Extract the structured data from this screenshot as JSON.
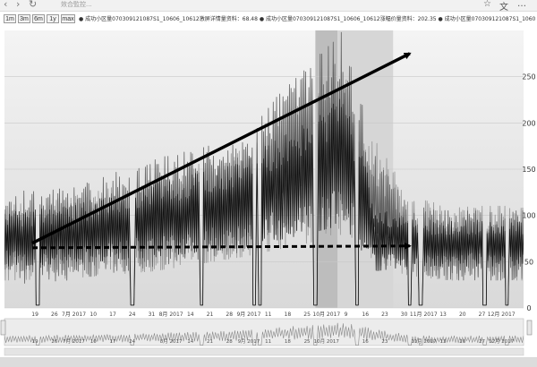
{
  "browser": {
    "address_text": "效合監控...",
    "right_buttons": [
      "☆",
      "文",
      "…"
    ]
  },
  "toolbar": {
    "zoom_buttons": [
      "1m",
      "3m",
      "6m",
      "1y",
      "max"
    ],
    "legend_text": "● 成功小区量070309121087S1_10606_10612激屏详情量资料：68.48 ● 成功小区量070309121087S1_10606_10612涨幅价量资料：202.35 ● 成功小区量070309121087S1_10606_10612事件量不资料 | 08:00 10月 20.2017"
  },
  "colors": {
    "background_gradient_start": "#f4f4f4",
    "background_gradient_end": "#d9d9d9",
    "series_light": "#9b9b9b",
    "series_mid": "#5f5f5f",
    "series_dark": "#111111",
    "trend_arrow": "#000000",
    "navigator_bg": "#ececec"
  },
  "chart_data": {
    "type": "line",
    "x_start": "2017-06-08",
    "x_end": "2017-12-12",
    "ylim": [
      0,
      300
    ],
    "y_ticks": [
      0,
      50,
      100,
      150,
      200,
      250
    ],
    "x_tick_labels": [
      "19",
      "26",
      "7月 2017",
      "10",
      "17",
      "24",
      "31",
      "8月 2017",
      "14",
      "21",
      "28",
      "9月 2017",
      "11",
      "18",
      "25",
      "10月 2017",
      "9",
      "16",
      "23",
      "30",
      "11月 2017",
      "13",
      "20",
      "27",
      "12月 2017"
    ],
    "x_tick_dates": [
      "2017-06-19",
      "2017-06-26",
      "2017-07-03",
      "2017-07-10",
      "2017-07-17",
      "2017-07-24",
      "2017-07-31",
      "2017-08-07",
      "2017-08-14",
      "2017-08-21",
      "2017-08-28",
      "2017-09-04",
      "2017-09-11",
      "2017-09-18",
      "2017-09-25",
      "2017-10-02",
      "2017-10-09",
      "2017-10-16",
      "2017-10-23",
      "2017-10-30",
      "2017-11-06",
      "2017-11-13",
      "2017-11-20",
      "2017-11-27",
      "2017-12-04"
    ],
    "navigator_tick_labels": [
      "19",
      "26",
      "7月 2017",
      "10",
      "17",
      "24",
      "8月 2017",
      "14",
      "21",
      "28",
      "9月 2017",
      "11",
      "18",
      "25",
      "10月 2017",
      "16",
      "23",
      "11月 2017",
      "13",
      "20",
      "27",
      "12月 2017"
    ],
    "navigator_tick_dates": [
      "2017-06-19",
      "2017-06-26",
      "2017-07-03",
      "2017-07-10",
      "2017-07-17",
      "2017-07-24",
      "2017-08-07",
      "2017-08-14",
      "2017-08-21",
      "2017-08-28",
      "2017-09-04",
      "2017-09-11",
      "2017-09-18",
      "2017-09-25",
      "2017-10-02",
      "2017-10-16",
      "2017-10-23",
      "2017-11-06",
      "2017-11-13",
      "2017-11-20",
      "2017-11-27",
      "2017-12-04"
    ],
    "shaded_bands": [
      {
        "from": "2017-09-28",
        "to": "2017-10-06",
        "color": "#bdbdbd"
      },
      {
        "from": "2017-10-06",
        "to": "2017-10-26",
        "color": "#d6d6d6"
      }
    ],
    "series_overview": [
      {
        "name": "激屏详情量",
        "x": [
          "2017-06-08",
          "2017-07-01",
          "2017-08-01",
          "2017-09-01",
          "2017-09-25",
          "2017-10-08",
          "2017-10-20",
          "2017-11-01",
          "2017-11-15",
          "2017-12-12"
        ],
        "low": [
          30,
          32,
          40,
          55,
          70,
          80,
          45,
          35,
          30,
          30
        ],
        "high": [
          110,
          120,
          140,
          170,
          230,
          260,
          180,
          120,
          110,
          110
        ]
      },
      {
        "name": "涨幅价量",
        "x": [
          "2017-06-08",
          "2017-07-01",
          "2017-08-01",
          "2017-09-01",
          "2017-09-25",
          "2017-10-08",
          "2017-10-20",
          "2017-11-01",
          "2017-11-15",
          "2017-12-12"
        ],
        "low": [
          25,
          30,
          45,
          60,
          90,
          100,
          60,
          40,
          30,
          30
        ],
        "high": [
          125,
          130,
          160,
          190,
          260,
          300,
          160,
          110,
          105,
          105
        ]
      },
      {
        "name": "事件量",
        "x": [
          "2017-06-08",
          "2017-07-01",
          "2017-08-01",
          "2017-09-01",
          "2017-09-25",
          "2017-10-08",
          "2017-10-20",
          "2017-11-01",
          "2017-11-15",
          "2017-12-12"
        ],
        "low": [
          45,
          48,
          55,
          65,
          80,
          90,
          40,
          45,
          45,
          45
        ],
        "high": [
          105,
          110,
          135,
          160,
          200,
          240,
          110,
          95,
          95,
          95
        ]
      }
    ],
    "dips": [
      "2017-06-20",
      "2017-07-24",
      "2017-08-18",
      "2017-09-06",
      "2017-09-08",
      "2017-09-28",
      "2017-10-13",
      "2017-11-01",
      "2017-11-05",
      "2017-11-28",
      "2017-12-06"
    ],
    "annotations": [
      {
        "type": "arrow",
        "style": "solid",
        "from": {
          "x": "2017-06-18",
          "y": 70
        },
        "to": {
          "x": "2017-11-01",
          "y": 275
        }
      },
      {
        "type": "arrow",
        "style": "dashed",
        "from": {
          "x": "2017-06-18",
          "y": 65
        },
        "to": {
          "x": "2017-11-01",
          "y": 67
        }
      }
    ]
  }
}
